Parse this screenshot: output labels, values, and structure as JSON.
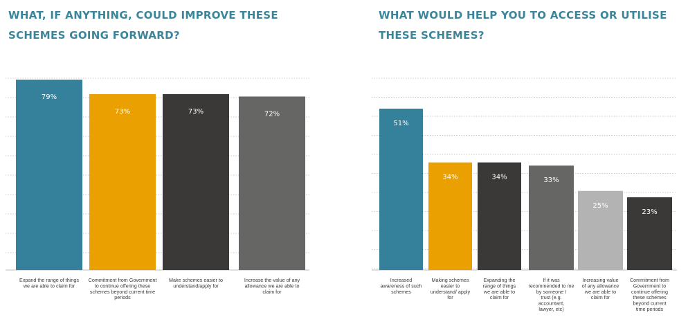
{
  "titles": {
    "left": "WHAT, IF ANYTHING, COULD IMPROVE THESE\nSCHEMES GOING FORWARD?",
    "right": "WHAT WOULD HELP YOU TO ACCESS OR UTILISE\nTHESE SCHEMES?"
  },
  "chart_data": [
    {
      "type": "bar",
      "title": "WHAT, IF ANYTHING, COULD IMPROVE THESE SCHEMES GOING FORWARD?",
      "categories": [
        "Expand the range of things we are able to claim for",
        "Commitment from Government to continue offering these schemes beyond current time periods",
        "Make schemes easier to understand/apply for",
        "Increase the value of any allowance we are able to claim for"
      ],
      "values": [
        79,
        73,
        73,
        72
      ],
      "value_labels": [
        "79%",
        "73%",
        "73%",
        "72%"
      ],
      "colors": [
        "#35809a",
        "#e9a000",
        "#3a3938",
        "#666665"
      ],
      "ylim": [
        0,
        80
      ],
      "grid": true,
      "legend": "none"
    },
    {
      "type": "bar",
      "title": "WHAT WOULD HELP YOU TO ACCESS OR UTILISE THESE SCHEMES?",
      "categories": [
        "Increased awareness of such schemes",
        "Making schemes easier to understand/ apply for",
        "Expanding the range of things we are able to claim for",
        "If it was recommended to me by someone I trust (e.g. accountant, lawyer, etc)",
        "Increasing value of any allowance we are able to claim for",
        "Commitment from Government to continue offering these schemes beyond current time periods"
      ],
      "values": [
        51,
        34,
        34,
        33,
        25,
        23
      ],
      "value_labels": [
        "51%",
        "34%",
        "34%",
        "33%",
        "25%",
        "23%"
      ],
      "colors": [
        "#35809a",
        "#e9a000",
        "#3a3938",
        "#666665",
        "#b3b3b3",
        "#3a3938"
      ],
      "ylim": [
        0,
        60
      ],
      "grid": true,
      "legend": "none"
    }
  ]
}
